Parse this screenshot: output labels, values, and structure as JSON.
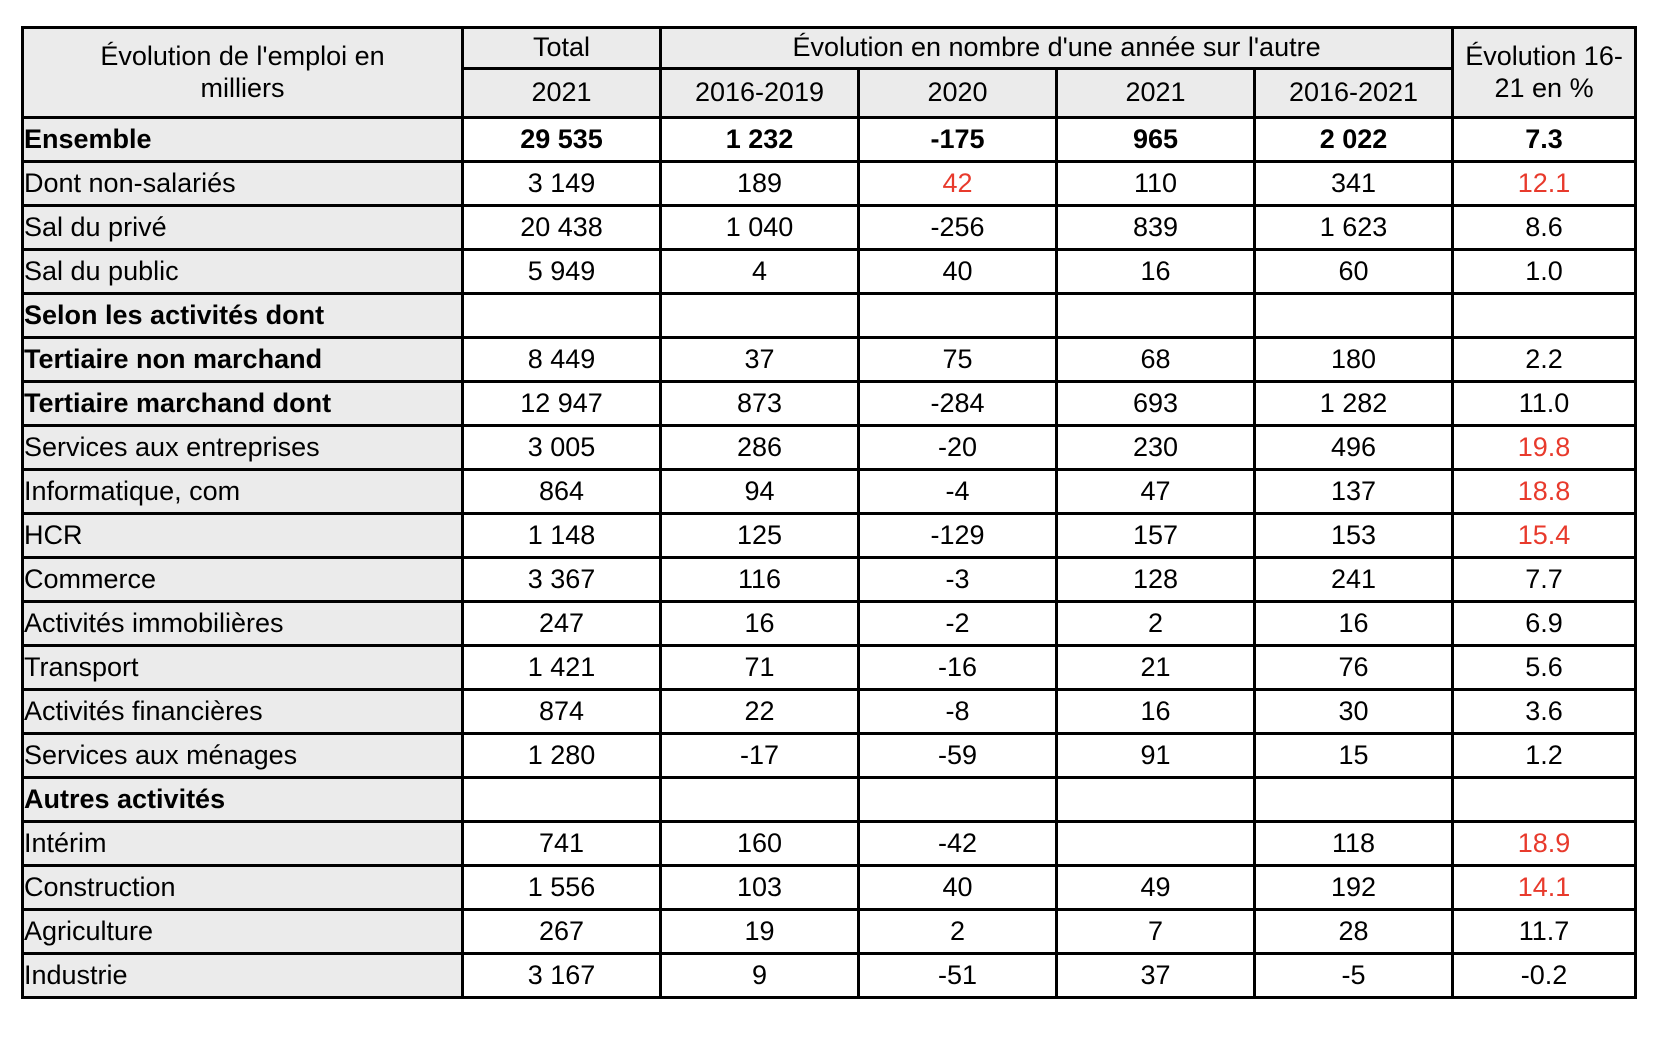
{
  "table": {
    "header": {
      "label_line1": "Évolution de l'emploi en",
      "label_line2": "milliers",
      "total_title": "Total",
      "total_sub": "2021",
      "evolution_title": "Évolution en nombre d'une année sur l'autre",
      "evolution_cols": [
        "2016-2019",
        "2020",
        "2021",
        "2016-2021"
      ],
      "pct_line1": "Évolution 16-",
      "pct_line2": "21 en  %"
    },
    "columns": [
      "Total 2021",
      "2016-2019",
      "2020",
      "2021",
      "2016-2021",
      "Évolution 16-21 en %"
    ],
    "rows": [
      {
        "label": "Ensemble",
        "bold_label": true,
        "bold_values": true,
        "values": [
          "29 535",
          "1 232",
          "-175",
          "965",
          "2 022",
          "7.3"
        ],
        "red": []
      },
      {
        "label": "Dont non-salariés",
        "bold_label": false,
        "bold_values": false,
        "values": [
          "3 149",
          "189",
          "42",
          "110",
          "341",
          "12.1"
        ],
        "red": [
          2,
          5
        ]
      },
      {
        "label": "Sal du privé",
        "bold_label": false,
        "bold_values": false,
        "values": [
          "20 438",
          "1 040",
          "-256",
          "839",
          "1 623",
          "8.6"
        ],
        "red": []
      },
      {
        "label": "Sal du public",
        "bold_label": false,
        "bold_values": false,
        "values": [
          "5 949",
          "4",
          "40",
          "16",
          "60",
          "1.0"
        ],
        "red": []
      },
      {
        "label": "Selon les activités dont",
        "bold_label": true,
        "bold_values": false,
        "values": [
          "",
          "",
          "",
          "",
          "",
          ""
        ],
        "red": []
      },
      {
        "label": "Tertiaire non marchand",
        "bold_label": true,
        "bold_values": false,
        "values": [
          "8 449",
          "37",
          "75",
          "68",
          "180",
          "2.2"
        ],
        "red": []
      },
      {
        "label": "Tertiaire marchand dont",
        "bold_label": true,
        "bold_values": false,
        "values": [
          "12 947",
          "873",
          "-284",
          "693",
          "1 282",
          "11.0"
        ],
        "red": []
      },
      {
        "label": "Services aux entreprises",
        "bold_label": false,
        "bold_values": false,
        "values": [
          "3 005",
          "286",
          "-20",
          "230",
          "496",
          "19.8"
        ],
        "red": [
          5
        ]
      },
      {
        "label": "Informatique, com",
        "bold_label": false,
        "bold_values": false,
        "values": [
          "864",
          "94",
          "-4",
          "47",
          "137",
          "18.8"
        ],
        "red": [
          5
        ]
      },
      {
        "label": "HCR",
        "bold_label": false,
        "bold_values": false,
        "values": [
          "1 148",
          "125",
          "-129",
          "157",
          "153",
          "15.4"
        ],
        "red": [
          5
        ]
      },
      {
        "label": "Commerce",
        "bold_label": false,
        "bold_values": false,
        "values": [
          "3 367",
          "116",
          "-3",
          "128",
          "241",
          "7.7"
        ],
        "red": []
      },
      {
        "label": "Activités immobilières",
        "bold_label": false,
        "bold_values": false,
        "values": [
          "247",
          "16",
          "-2",
          "2",
          "16",
          "6.9"
        ],
        "red": []
      },
      {
        "label": "Transport",
        "bold_label": false,
        "bold_values": false,
        "values": [
          "1 421",
          "71",
          "-16",
          "21",
          "76",
          "5.6"
        ],
        "red": []
      },
      {
        "label": "Activités financières",
        "bold_label": false,
        "bold_values": false,
        "values": [
          "874",
          "22",
          "-8",
          "16",
          "30",
          "3.6"
        ],
        "red": []
      },
      {
        "label": "Services aux ménages",
        "bold_label": false,
        "bold_values": false,
        "values": [
          "1 280",
          "-17",
          "-59",
          "91",
          "15",
          "1.2"
        ],
        "red": []
      },
      {
        "label": "Autres activités",
        "bold_label": true,
        "bold_values": false,
        "values": [
          "",
          "",
          "",
          "",
          "",
          ""
        ],
        "red": []
      },
      {
        "label": "Intérim",
        "bold_label": false,
        "bold_values": false,
        "values": [
          "741",
          "160",
          "-42",
          "",
          "118",
          "18.9"
        ],
        "red": [
          5
        ]
      },
      {
        "label": "Construction",
        "bold_label": false,
        "bold_values": false,
        "values": [
          "1 556",
          "103",
          "40",
          "49",
          "192",
          "14.1"
        ],
        "red": [
          5
        ]
      },
      {
        "label": "Agriculture",
        "bold_label": false,
        "bold_values": false,
        "values": [
          "267",
          "19",
          "2",
          "7",
          "28",
          "11.7"
        ],
        "red": []
      },
      {
        "label": "Industrie",
        "bold_label": false,
        "bold_values": false,
        "values": [
          "3 167",
          "9",
          "-51",
          "37",
          "-5",
          "-0.2"
        ],
        "red": []
      }
    ],
    "colors": {
      "header_bg": "#ebebeb",
      "label_bg": "#ebebeb",
      "border": "#000000",
      "red_value": "#e83a2c"
    }
  }
}
